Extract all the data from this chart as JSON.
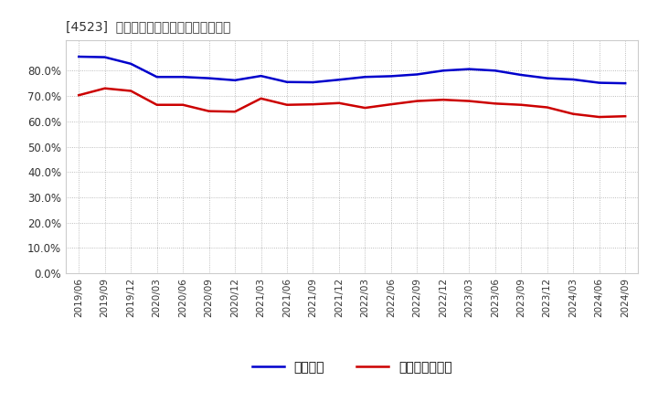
{
  "title": "[4523]  固定比率、固定長期適合率の推移",
  "blue_label": "固定比率",
  "red_label": "固定長期適合率",
  "blue_color": "#0000cc",
  "red_color": "#cc0000",
  "background_color": "#ffffff",
  "grid_color": "#aaaaaa",
  "ylim": [
    0.0,
    0.92
  ],
  "yticks": [
    0.0,
    0.1,
    0.2,
    0.3,
    0.4,
    0.5,
    0.6,
    0.7,
    0.8
  ],
  "x_labels": [
    "2019/06",
    "2019/09",
    "2019/12",
    "2020/03",
    "2020/06",
    "2020/09",
    "2020/12",
    "2021/03",
    "2021/06",
    "2021/09",
    "2021/12",
    "2022/03",
    "2022/06",
    "2022/09",
    "2022/12",
    "2023/03",
    "2023/06",
    "2023/09",
    "2023/12",
    "2024/03",
    "2024/06",
    "2024/09"
  ],
  "blue_values": [
    0.855,
    0.853,
    0.827,
    0.775,
    0.775,
    0.77,
    0.762,
    0.779,
    0.755,
    0.754,
    0.764,
    0.775,
    0.778,
    0.785,
    0.8,
    0.806,
    0.8,
    0.783,
    0.77,
    0.765,
    0.752,
    0.75
  ],
  "red_values": [
    0.703,
    0.73,
    0.72,
    0.665,
    0.665,
    0.64,
    0.638,
    0.69,
    0.665,
    0.667,
    0.672,
    0.653,
    0.667,
    0.68,
    0.685,
    0.68,
    0.67,
    0.665,
    0.655,
    0.629,
    0.617,
    0.62
  ]
}
